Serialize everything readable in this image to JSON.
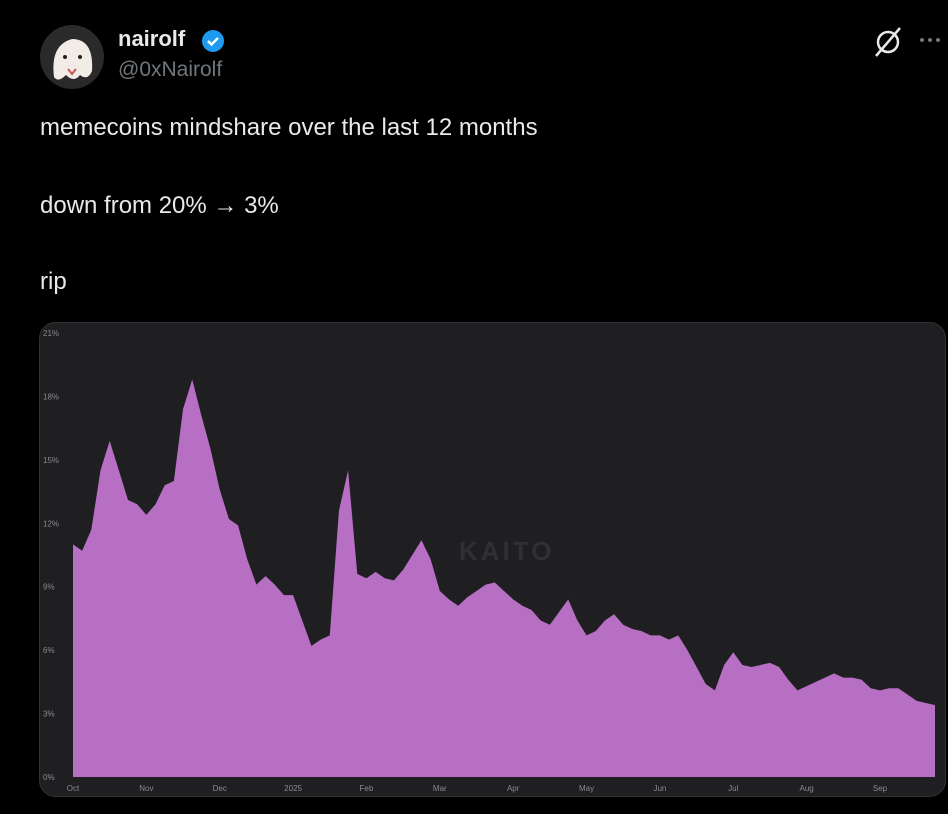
{
  "tweet": {
    "author_name": "nairolf",
    "handle": "@0xNairolf",
    "lines": [
      "memecoins mindshare over the last 12 months",
      "down from 20% → 3%",
      "rip"
    ]
  },
  "chart_data": {
    "type": "area",
    "watermark": "KAITO",
    "color": "#b76fc4",
    "categories": [
      "Oct",
      null,
      null,
      null,
      null,
      null,
      null,
      null,
      "Nov",
      null,
      null,
      null,
      null,
      null,
      null,
      null,
      "Dec",
      null,
      null,
      null,
      null,
      null,
      null,
      null,
      "2025",
      null,
      null,
      null,
      null,
      null,
      null,
      null,
      "Feb",
      null,
      null,
      null,
      null,
      null,
      null,
      null,
      "Mar",
      null,
      null,
      null,
      null,
      null,
      null,
      null,
      "Apr",
      null,
      null,
      null,
      null,
      null,
      null,
      null,
      "May",
      null,
      null,
      null,
      null,
      null,
      null,
      null,
      "Jun",
      null,
      null,
      null,
      null,
      null,
      null,
      null,
      "Jul",
      null,
      null,
      null,
      null,
      null,
      null,
      null,
      "Aug",
      null,
      null,
      null,
      null,
      null,
      null,
      null,
      "Sep",
      null,
      null,
      null,
      null,
      null,
      null
    ],
    "values": [
      11.0,
      10.7,
      11.7,
      14.5,
      15.9,
      14.5,
      13.1,
      12.9,
      12.4,
      12.9,
      13.8,
      14.0,
      17.4,
      18.8,
      17.1,
      15.5,
      13.6,
      12.2,
      11.9,
      10.3,
      9.1,
      9.5,
      9.1,
      8.6,
      8.6,
      7.4,
      6.2,
      6.5,
      6.7,
      12.6,
      14.5,
      9.6,
      9.4,
      9.7,
      9.4,
      9.3,
      9.8,
      10.5,
      11.2,
      10.3,
      8.8,
      8.4,
      8.1,
      8.5,
      8.8,
      9.1,
      9.2,
      8.8,
      8.4,
      8.1,
      7.9,
      7.4,
      7.2,
      7.8,
      8.4,
      7.4,
      6.7,
      6.9,
      7.4,
      7.7,
      7.2,
      7.0,
      6.9,
      6.7,
      6.7,
      6.5,
      6.7,
      6.0,
      5.2,
      4.4,
      4.1,
      5.3,
      5.9,
      5.3,
      5.2,
      5.3,
      5.4,
      5.2,
      4.6,
      4.1,
      4.3,
      4.5,
      4.7,
      4.9,
      4.7,
      4.7,
      4.6,
      4.2,
      4.1,
      4.2,
      4.2,
      3.9,
      3.6,
      3.5,
      3.4
    ],
    "ylim": [
      0,
      21
    ],
    "yticks": [
      {
        "value": 0,
        "label": "0%"
      },
      {
        "value": 3,
        "label": "3%"
      },
      {
        "value": 6,
        "label": "6%"
      },
      {
        "value": 9,
        "label": "9%"
      },
      {
        "value": 12,
        "label": "12%"
      },
      {
        "value": 15,
        "label": "15%"
      },
      {
        "value": 18,
        "label": "18%"
      },
      {
        "value": 21,
        "label": "21%"
      }
    ]
  }
}
